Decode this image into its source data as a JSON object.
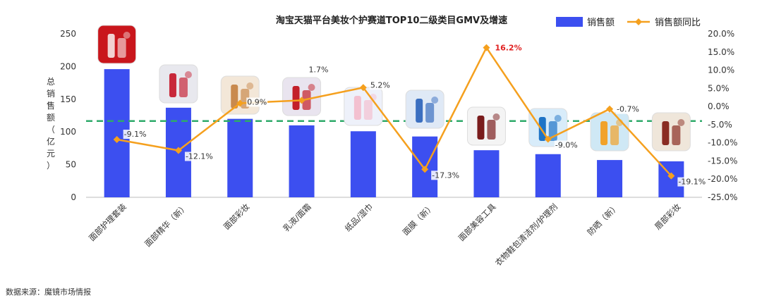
{
  "source_note": "数据来源：魔镜市场情报",
  "chart_data": {
    "type": "bar",
    "title": "淘宝天猫平台美妆个护赛道TOP10二级类目GMV及增速",
    "ylabel": "总销售额（亿元）",
    "ylim": [
      0,
      250
    ],
    "yticks": [
      "0",
      "50",
      "100",
      "150",
      "200",
      "250"
    ],
    "y2lim": [
      -25,
      20
    ],
    "y2ticks": [
      "-25.0%",
      "-20.0%",
      "-15.0%",
      "-10.0%",
      "-5.0%",
      "0.0%",
      "5.0%",
      "10.0%",
      "15.0%",
      "20.0%"
    ],
    "categories": [
      "面部护理套装",
      "面部精华（新）",
      "面部彩妆",
      "乳液/面霜",
      "纸品/湿巾",
      "面膜（新）",
      "面部美容工具",
      "衣物鞋包清洁剂/护理剂",
      "防晒（新）",
      "唇部彩妆"
    ],
    "series": [
      {
        "name": "销售额",
        "type": "bar",
        "color": "#3c4ff0",
        "values": [
          196,
          137,
          120,
          110,
          101,
          93,
          72,
          66,
          57,
          55
        ]
      },
      {
        "name": "销售额同比",
        "type": "line",
        "axis": "right",
        "color": "#f5a01e",
        "values": [
          -9.1,
          -12.1,
          0.9,
          1.7,
          5.2,
          -17.3,
          16.2,
          -9.0,
          -0.7,
          -19.1
        ],
        "labels": [
          "-9.1%",
          "-12.1%",
          "0.9%",
          "1.7%",
          "5.2%",
          "-17.3%",
          "16.2%",
          "-9.0%",
          "-0.7%",
          "-19.1%"
        ]
      }
    ],
    "reference_line": {
      "value": -4.0,
      "axis": "right",
      "style": "dashed",
      "color": "#2eaa6a"
    },
    "legend": {
      "position": "top-right"
    },
    "grid": false
  }
}
